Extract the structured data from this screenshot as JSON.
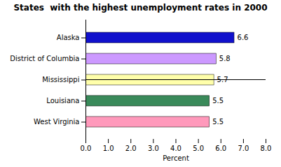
{
  "chart_data": {
    "type": "bar",
    "orientation": "horizontal",
    "title": "States  with the highest unemployment rates in 2000",
    "categories": [
      "West Virginia",
      "Louisiana",
      "Mississippi",
      "District of Columbia",
      "Alaska"
    ],
    "values": [
      5.5,
      5.5,
      5.7,
      5.8,
      6.6
    ],
    "colors": [
      "#FF99BB",
      "#3A8A5A",
      "#FFFFAA",
      "#CC99FF",
      "#1111CC"
    ],
    "xlabel": "Percent",
    "xlim": [
      0,
      8.0
    ],
    "xticks": [
      {
        "value": 0,
        "label": "0.0"
      },
      {
        "value": 1,
        "label": "1.0"
      },
      {
        "value": 2,
        "label": "2.0"
      },
      {
        "value": 3,
        "label": "3.0"
      },
      {
        "value": 4,
        "label": "4.0"
      },
      {
        "value": 5,
        "label": "5.0"
      },
      {
        "value": 6,
        "label": "6.0"
      },
      {
        "value": 7,
        "label": "7.0"
      },
      {
        "value": 8,
        "label": "8.0"
      }
    ],
    "data_labels": true,
    "grid": false
  }
}
